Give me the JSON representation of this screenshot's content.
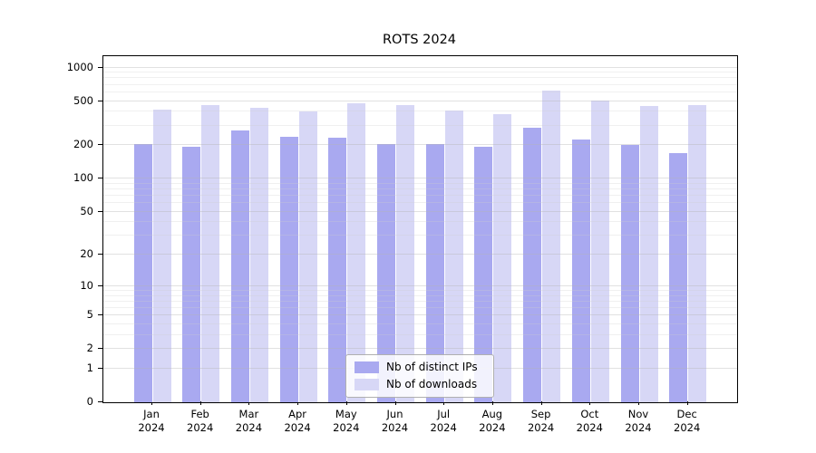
{
  "title": "ROTS 2024",
  "legend": {
    "position": "lower center",
    "items": [
      {
        "label": "Nb of distinct IPs",
        "color": "#a9a9f0"
      },
      {
        "label": "Nb of downloads",
        "color": "#d7d7f6"
      }
    ]
  },
  "chart_data": {
    "type": "bar",
    "title": "ROTS 2024",
    "categories": [
      "Jan 2024",
      "Feb 2024",
      "Mar 2024",
      "Apr 2024",
      "May 2024",
      "Jun 2024",
      "Jul 2024",
      "Aug 2024",
      "Sep 2024",
      "Oct 2024",
      "Nov 2024",
      "Dec 2024"
    ],
    "series": [
      {
        "name": "Nb of distinct IPs",
        "color": "#a9a9f0",
        "values": [
          205,
          195,
          270,
          240,
          235,
          205,
          205,
          195,
          290,
          225,
          200,
          170
        ]
      },
      {
        "name": "Nb of downloads",
        "color": "#d7d7f6",
        "values": [
          420,
          460,
          435,
          405,
          475,
          460,
          410,
          385,
          625,
          505,
          455,
          460
        ]
      }
    ],
    "xlabel": "",
    "ylabel": "",
    "yscale": "log10(1+v)",
    "ylim": [
      0,
      1250
    ],
    "y_major_ticks": [
      0,
      1,
      2,
      5,
      10,
      20,
      50,
      100,
      200,
      500,
      1000
    ],
    "y_minor_gridlines": [
      3,
      4,
      6,
      7,
      8,
      9,
      30,
      40,
      60,
      70,
      80,
      90,
      300,
      400,
      600,
      700,
      800,
      900
    ],
    "grid": "horizontal gridlines drawn over bars",
    "legend_position": "lower center"
  }
}
